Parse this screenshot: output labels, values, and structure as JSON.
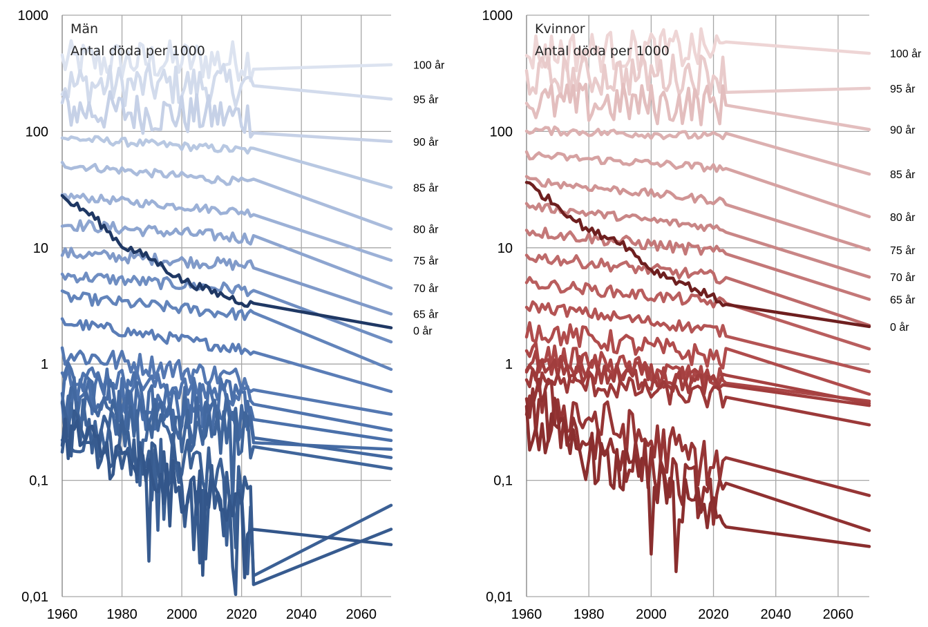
{
  "chart_data": [
    {
      "type": "line",
      "title": "Män",
      "subtitle": "Antal döda per 1000",
      "xlabel": "",
      "ylabel": "",
      "y_scale": "log",
      "ylim": [
        0.01,
        1000
      ],
      "xlim": [
        1960,
        2070
      ],
      "x_ticks": [
        "1960",
        "1980",
        "2000",
        "2020",
        "2040",
        "2060"
      ],
      "y_ticks": [
        "0,01",
        "0,1",
        "1",
        "10",
        "100",
        "1000"
      ],
      "grid": true,
      "legend": "none",
      "highlight_color": "#1f3864",
      "series": [
        {
          "name": "100 år",
          "color": "#dce3f0",
          "points": [
            [
              1960,
              400
            ],
            [
              2024,
              410
            ],
            [
              2070,
              375
            ]
          ]
        },
        {
          "name": "95 år",
          "color": "#d2dbec",
          "points": [
            [
              1960,
              250
            ],
            [
              2024,
              250
            ],
            [
              2070,
              190
            ]
          ]
        },
        {
          "name": "90 år",
          "color": "#c6d1e7",
          "points": [
            [
              1960,
              155
            ],
            [
              2024,
              132
            ],
            [
              2070,
              82
            ]
          ]
        },
        {
          "name": "85 år",
          "color": "#b8c8e2",
          "points": [
            [
              1960,
              88
            ],
            [
              2024,
              68
            ],
            [
              2070,
              33
            ]
          ]
        },
        {
          "name": "80 år",
          "color": "#aabcdc",
          "points": [
            [
              1960,
              52
            ],
            [
              2024,
              36
            ],
            [
              2070,
              14.5
            ]
          ]
        },
        {
          "name": "75 år",
          "color": "#9cb1d7",
          "points": [
            [
              1960,
              28
            ],
            [
              2024,
              20
            ],
            [
              2070,
              7.8
            ]
          ]
        },
        {
          "name": "70 år",
          "color": "#8da5d0",
          "points": [
            [
              1960,
              16
            ],
            [
              2024,
              12
            ],
            [
              2070,
              4.5
            ]
          ]
        },
        {
          "name": "65 år",
          "color": "#809ac9",
          "points": [
            [
              1960,
              9
            ],
            [
              2024,
              7
            ],
            [
              2070,
              2.7
            ]
          ]
        },
        {
          "points": [
            [
              1960,
              5.8
            ],
            [
              2024,
              4.3
            ],
            [
              2070,
              1.55
            ]
          ],
          "color": "#6f8ec2"
        },
        {
          "points": [
            [
              1960,
              3.8
            ],
            [
              2024,
              2.6
            ],
            [
              2070,
              0.9
            ]
          ],
          "color": "#6284bb"
        },
        {
          "points": [
            [
              1960,
              2.3
            ],
            [
              2024,
              1.3
            ],
            [
              2070,
              0.58
            ]
          ],
          "color": "#5a7db7"
        },
        {
          "points": [
            [
              1960,
              1.25
            ],
            [
              2024,
              0.72
            ],
            [
              2070,
              0.37
            ]
          ],
          "color": "#5478b2"
        },
        {
          "points": [
            [
              1960,
              0.85
            ],
            [
              2024,
              0.52
            ],
            [
              2070,
              0.27
            ]
          ],
          "color": "#4f74ae"
        },
        {
          "points": [
            [
              1960,
              0.65
            ],
            [
              2024,
              0.42
            ],
            [
              2070,
              0.22
            ]
          ],
          "color": "#4a70aa"
        },
        {
          "points": [
            [
              1960,
              0.5
            ],
            [
              2024,
              0.34
            ],
            [
              2070,
              0.185
            ]
          ],
          "color": "#466ca5"
        },
        {
          "points": [
            [
              1960,
              0.42
            ],
            [
              2024,
              0.3
            ],
            [
              2070,
              0.157
            ]
          ],
          "color": "#4268a0"
        },
        {
          "points": [
            [
              1960,
              0.33
            ],
            [
              2024,
              0.25
            ],
            [
              2070,
              0.126
            ]
          ],
          "color": "#3f659b"
        },
        {
          "points": [
            [
              1960,
              0.3
            ],
            [
              2024,
              0.095
            ],
            [
              2070,
              0.061
            ]
          ],
          "color": "#3b6095"
        },
        {
          "points": [
            [
              1960,
              0.28
            ],
            [
              2024,
              0.06
            ],
            [
              2070,
              0.038
            ]
          ],
          "color": "#375b8f"
        },
        {
          "points": [
            [
              1960,
              0.26
            ],
            [
              2024,
              0.045
            ],
            [
              2070,
              0.028
            ]
          ],
          "color": "#33568a"
        },
        {
          "name": "0 år",
          "color": "#1f3864",
          "highlight": true,
          "points": [
            [
              1960,
              27
            ],
            [
              1970,
              19
            ],
            [
              1980,
              10.5
            ],
            [
              1990,
              8
            ],
            [
              2000,
              5.3
            ],
            [
              2010,
              4.2
            ],
            [
              2024,
              3.2
            ],
            [
              2070,
              2.05
            ]
          ]
        }
      ]
    },
    {
      "type": "line",
      "title": "Kvinnor",
      "subtitle": "Antal döda per 1000",
      "xlabel": "",
      "ylabel": "",
      "y_scale": "log",
      "ylim": [
        0.01,
        1000
      ],
      "xlim": [
        1960,
        2070
      ],
      "x_ticks": [
        "1960",
        "1980",
        "2000",
        "2020",
        "2040",
        "2060"
      ],
      "y_ticks": [
        "0,01",
        "0,1",
        "1",
        "10",
        "100",
        "1000"
      ],
      "grid": true,
      "legend": "none",
      "highlight_color": "#6e1f1f",
      "series": [
        {
          "name": "100 år",
          "color": "#eed5d5",
          "points": [
            [
              1960,
              480
            ],
            [
              2024,
              510
            ],
            [
              2070,
              470
            ]
          ]
        },
        {
          "name": "95 år",
          "color": "#e9cbcb",
          "points": [
            [
              1960,
              290
            ],
            [
              2024,
              320
            ],
            [
              2070,
              235
            ]
          ]
        },
        {
          "name": "90 år",
          "color": "#e3bebe",
          "points": [
            [
              1960,
              175
            ],
            [
              2024,
              170
            ],
            [
              2070,
              104
            ]
          ]
        },
        {
          "name": "85 år",
          "color": "#dcb0b0",
          "points": [
            [
              1960,
              103
            ],
            [
              2024,
              90
            ],
            [
              2070,
              43
            ]
          ]
        },
        {
          "name": "80 år",
          "color": "#d6a2a2",
          "points": [
            [
              1960,
              63
            ],
            [
              2024,
              48
            ],
            [
              2070,
              18.5
            ]
          ]
        },
        {
          "name": "75 år",
          "color": "#d09494",
          "points": [
            [
              1960,
              38
            ],
            [
              2024,
              25
            ],
            [
              2070,
              9.6
            ]
          ]
        },
        {
          "name": "70 år",
          "color": "#c98686",
          "points": [
            [
              1960,
              23
            ],
            [
              2024,
              14.5
            ],
            [
              2070,
              5.6
            ]
          ]
        },
        {
          "name": "65 år",
          "color": "#c47878",
          "points": [
            [
              1960,
              14
            ],
            [
              2024,
              9
            ],
            [
              2070,
              3.6
            ]
          ]
        },
        {
          "points": [
            [
              1960,
              8.5
            ],
            [
              2024,
              5.5
            ],
            [
              2070,
              2.15
            ]
          ],
          "color": "#be6a6a"
        },
        {
          "points": [
            [
              1960,
              5
            ],
            [
              2024,
              3.3
            ],
            [
              2070,
              1.35
            ]
          ],
          "color": "#b95e5e"
        },
        {
          "points": [
            [
              1960,
              3.2
            ],
            [
              2024,
              1.9
            ],
            [
              2070,
              0.86
            ]
          ],
          "color": "#b45454"
        },
        {
          "points": [
            [
              1960,
              2
            ],
            [
              2024,
              1.1
            ],
            [
              2070,
              0.55
            ]
          ],
          "color": "#b04c4c"
        },
        {
          "points": [
            [
              1960,
              1.25
            ],
            [
              2024,
              0.72
            ],
            [
              2070,
              0.48
            ]
          ],
          "color": "#ab4646"
        },
        {
          "points": [
            [
              1960,
              1.05
            ],
            [
              2024,
              0.68
            ],
            [
              2070,
              0.46
            ]
          ],
          "color": "#a64141"
        },
        {
          "points": [
            [
              1960,
              0.92
            ],
            [
              2024,
              0.64
            ],
            [
              2070,
              0.44
            ]
          ],
          "color": "#a13d3d"
        },
        {
          "points": [
            [
              1960,
              0.75
            ],
            [
              2024,
              0.5
            ],
            [
              2070,
              0.3
            ]
          ],
          "color": "#9c3939"
        },
        {
          "points": [
            [
              1960,
              0.55
            ],
            [
              2024,
              0.12
            ],
            [
              2070,
              0.074
            ]
          ],
          "color": "#963535"
        },
        {
          "points": [
            [
              1960,
              0.42
            ],
            [
              2024,
              0.06
            ],
            [
              2070,
              0.037
            ]
          ],
          "color": "#903131"
        },
        {
          "points": [
            [
              1960,
              0.3
            ],
            [
              2024,
              0.042
            ],
            [
              2070,
              0.027
            ]
          ],
          "color": "#8a2e2e"
        },
        {
          "name": "0 år",
          "color": "#6e1f1f",
          "highlight": true,
          "points": [
            [
              1960,
              36
            ],
            [
              1970,
              23
            ],
            [
              1980,
              14
            ],
            [
              1990,
              11.5
            ],
            [
              2000,
              6.5
            ],
            [
              2010,
              5
            ],
            [
              2024,
              3.3
            ],
            [
              2070,
              2.1
            ]
          ]
        }
      ]
    }
  ]
}
